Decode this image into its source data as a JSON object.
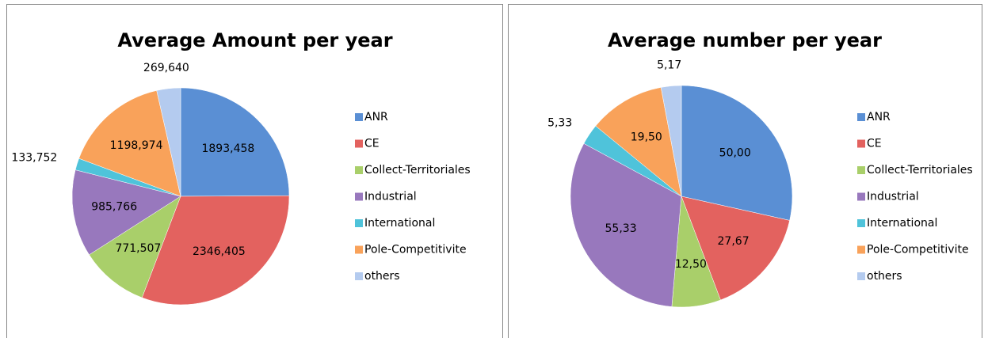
{
  "chart_data": [
    {
      "type": "pie",
      "title": "Average Amount per year",
      "categories": [
        "ANR",
        "CE",
        "Collect-Territoriales",
        "Industrial",
        "International",
        "Pole-Competitivite",
        "others"
      ],
      "values": [
        1893.458,
        2346.405,
        771.507,
        985.766,
        133.752,
        1198.974,
        269.64
      ],
      "value_labels": [
        "1893,458",
        "2346,405",
        "771,507",
        "985,766",
        "133,752",
        "1198,974",
        "269,640"
      ],
      "colors": [
        "#5a8fd4",
        "#e3625f",
        "#a9cf6a",
        "#9878bd",
        "#4fc3da",
        "#f9a25a",
        "#b4cbef"
      ],
      "legend": "right"
    },
    {
      "type": "pie",
      "title": "Average number per year",
      "categories": [
        "ANR",
        "CE",
        "Collect-Territoriales",
        "Industrial",
        "International",
        "Pole-Competitivite",
        "others"
      ],
      "values": [
        50.0,
        27.67,
        12.5,
        55.33,
        5.33,
        19.5,
        5.17
      ],
      "value_labels": [
        "50,00",
        "27,67",
        "12,50",
        "55,33",
        "5,33",
        "19,50",
        "5,17"
      ],
      "colors": [
        "#5a8fd4",
        "#e3625f",
        "#a9cf6a",
        "#9878bd",
        "#4fc3da",
        "#f9a25a",
        "#b4cbef"
      ],
      "legend": "right"
    }
  ]
}
